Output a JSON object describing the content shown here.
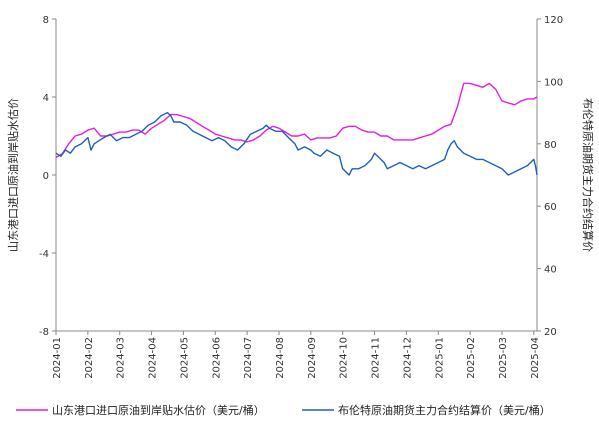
{
  "chart_data": {
    "type": "line",
    "y_left_label": "山东港口进口原油到岸贴水估价",
    "y_right_label": "布伦特原油期货主力合约结算价",
    "y_left_ticks": [
      8,
      4,
      0,
      -4,
      -8
    ],
    "y_left_range": [
      -8,
      8
    ],
    "y_right_ticks": [
      120,
      100,
      80,
      60,
      40,
      20
    ],
    "y_right_range": [
      20,
      120
    ],
    "x_tick_labels": [
      "2024-01",
      "2024-02",
      "2024-03",
      "2024-04",
      "2024-05",
      "2024-06",
      "2024-07",
      "2024-08",
      "2024-09",
      "2024-10",
      "2024-11",
      "2024-12",
      "2025-01",
      "2025-02",
      "2025-03",
      "2025-04"
    ],
    "x_range": [
      0,
      15.1
    ],
    "grid": false,
    "legend_position": "bottom",
    "series": [
      {
        "name": "山东港口进口原油到岸贴水估价（美元/桶）",
        "axis": "left",
        "color": "#e020e0",
        "points": [
          [
            0,
            0.9
          ],
          [
            0.2,
            1.1
          ],
          [
            0.4,
            1.6
          ],
          [
            0.6,
            2.0
          ],
          [
            0.8,
            2.1
          ],
          [
            1.0,
            2.3
          ],
          [
            1.2,
            2.4
          ],
          [
            1.4,
            2.0
          ],
          [
            1.6,
            2.0
          ],
          [
            1.8,
            2.1
          ],
          [
            2.0,
            2.2
          ],
          [
            2.2,
            2.2
          ],
          [
            2.4,
            2.3
          ],
          [
            2.6,
            2.3
          ],
          [
            2.8,
            2.1
          ],
          [
            3.0,
            2.4
          ],
          [
            3.2,
            2.6
          ],
          [
            3.4,
            2.8
          ],
          [
            3.6,
            3.1
          ],
          [
            3.8,
            3.1
          ],
          [
            4.0,
            3.0
          ],
          [
            4.2,
            2.9
          ],
          [
            4.4,
            2.7
          ],
          [
            4.6,
            2.5
          ],
          [
            4.8,
            2.3
          ],
          [
            5.0,
            2.1
          ],
          [
            5.2,
            2.0
          ],
          [
            5.4,
            1.9
          ],
          [
            5.6,
            1.8
          ],
          [
            5.8,
            1.8
          ],
          [
            6.0,
            1.7
          ],
          [
            6.2,
            1.8
          ],
          [
            6.4,
            2.0
          ],
          [
            6.6,
            2.3
          ],
          [
            6.8,
            2.5
          ],
          [
            7.0,
            2.4
          ],
          [
            7.2,
            2.2
          ],
          [
            7.4,
            2.0
          ],
          [
            7.6,
            2.0
          ],
          [
            7.8,
            2.1
          ],
          [
            8.0,
            1.8
          ],
          [
            8.2,
            1.9
          ],
          [
            8.4,
            1.9
          ],
          [
            8.6,
            1.9
          ],
          [
            8.8,
            2.0
          ],
          [
            9.0,
            2.4
          ],
          [
            9.2,
            2.5
          ],
          [
            9.4,
            2.5
          ],
          [
            9.6,
            2.3
          ],
          [
            9.8,
            2.2
          ],
          [
            10.0,
            2.2
          ],
          [
            10.2,
            2.0
          ],
          [
            10.4,
            2.0
          ],
          [
            10.6,
            1.8
          ],
          [
            10.8,
            1.8
          ],
          [
            11.0,
            1.8
          ],
          [
            11.2,
            1.8
          ],
          [
            11.4,
            1.9
          ],
          [
            11.6,
            2.0
          ],
          [
            11.8,
            2.1
          ],
          [
            12.0,
            2.3
          ],
          [
            12.2,
            2.5
          ],
          [
            12.4,
            2.6
          ],
          [
            12.6,
            3.5
          ],
          [
            12.8,
            4.7
          ],
          [
            13.0,
            4.7
          ],
          [
            13.2,
            4.6
          ],
          [
            13.4,
            4.5
          ],
          [
            13.6,
            4.7
          ],
          [
            13.8,
            4.4
          ],
          [
            14.0,
            3.8
          ],
          [
            14.2,
            3.7
          ],
          [
            14.4,
            3.6
          ],
          [
            14.6,
            3.8
          ],
          [
            14.8,
            3.9
          ],
          [
            15.0,
            3.9
          ],
          [
            15.1,
            4.0
          ]
        ]
      },
      {
        "name": "布伦特原油期货主力合约结算价（美元/桶）",
        "axis": "right",
        "color": "#1f5fbf",
        "points": [
          [
            0,
            77
          ],
          [
            0.15,
            76
          ],
          [
            0.3,
            78
          ],
          [
            0.45,
            77
          ],
          [
            0.6,
            79
          ],
          [
            0.8,
            80
          ],
          [
            1.0,
            82
          ],
          [
            1.1,
            78
          ],
          [
            1.2,
            80
          ],
          [
            1.35,
            81
          ],
          [
            1.5,
            82
          ],
          [
            1.7,
            83
          ],
          [
            1.9,
            81
          ],
          [
            2.1,
            82
          ],
          [
            2.3,
            82
          ],
          [
            2.5,
            83
          ],
          [
            2.7,
            84
          ],
          [
            2.9,
            86
          ],
          [
            3.1,
            87
          ],
          [
            3.3,
            89
          ],
          [
            3.5,
            90
          ],
          [
            3.6,
            89
          ],
          [
            3.7,
            87
          ],
          [
            3.9,
            87
          ],
          [
            4.1,
            86
          ],
          [
            4.3,
            84
          ],
          [
            4.5,
            83
          ],
          [
            4.7,
            82
          ],
          [
            4.9,
            81
          ],
          [
            5.1,
            82
          ],
          [
            5.3,
            81
          ],
          [
            5.5,
            79
          ],
          [
            5.7,
            78
          ],
          [
            5.9,
            80
          ],
          [
            6.1,
            83
          ],
          [
            6.3,
            84
          ],
          [
            6.5,
            85
          ],
          [
            6.6,
            86
          ],
          [
            6.7,
            85
          ],
          [
            6.9,
            84
          ],
          [
            7.1,
            84
          ],
          [
            7.3,
            82
          ],
          [
            7.5,
            80
          ],
          [
            7.6,
            78
          ],
          [
            7.8,
            79
          ],
          [
            8.0,
            78
          ],
          [
            8.1,
            77
          ],
          [
            8.3,
            76
          ],
          [
            8.5,
            78
          ],
          [
            8.7,
            77
          ],
          [
            8.9,
            76
          ],
          [
            9.0,
            72
          ],
          [
            9.1,
            71
          ],
          [
            9.2,
            70
          ],
          [
            9.3,
            72
          ],
          [
            9.5,
            72
          ],
          [
            9.7,
            73
          ],
          [
            9.9,
            75
          ],
          [
            10.0,
            77
          ],
          [
            10.1,
            76
          ],
          [
            10.2,
            75
          ],
          [
            10.3,
            74
          ],
          [
            10.4,
            72
          ],
          [
            10.6,
            73
          ],
          [
            10.8,
            74
          ],
          [
            11.0,
            73
          ],
          [
            11.2,
            72
          ],
          [
            11.4,
            73
          ],
          [
            11.6,
            72
          ],
          [
            11.8,
            73
          ],
          [
            12.0,
            74
          ],
          [
            12.2,
            75
          ],
          [
            12.3,
            78
          ],
          [
            12.4,
            80
          ],
          [
            12.5,
            81
          ],
          [
            12.6,
            79
          ],
          [
            12.8,
            77
          ],
          [
            13.0,
            76
          ],
          [
            13.2,
            75
          ],
          [
            13.4,
            75
          ],
          [
            13.6,
            74
          ],
          [
            13.8,
            73
          ],
          [
            14.0,
            72
          ],
          [
            14.1,
            71
          ],
          [
            14.2,
            70
          ],
          [
            14.4,
            71
          ],
          [
            14.6,
            72
          ],
          [
            14.8,
            73
          ],
          [
            14.9,
            74
          ],
          [
            15.0,
            75
          ],
          [
            15.05,
            73
          ],
          [
            15.1,
            70
          ]
        ]
      }
    ]
  }
}
